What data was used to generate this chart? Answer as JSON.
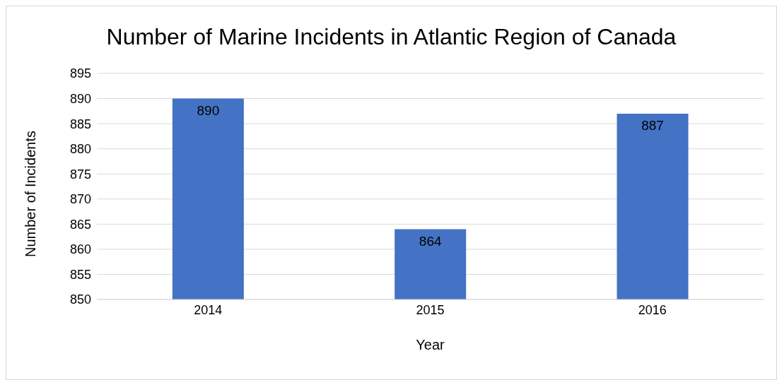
{
  "chart_data": {
    "type": "bar",
    "title": "Number of Marine Incidents in Atlantic Region of Canada",
    "xlabel": "Year",
    "ylabel": "Number of Incidents",
    "categories": [
      "2014",
      "2015",
      "2016"
    ],
    "values": [
      890,
      864,
      887
    ],
    "color": "#4472c4",
    "ylim": [
      850,
      895
    ],
    "yticks": [
      850,
      855,
      860,
      865,
      870,
      875,
      880,
      885,
      890,
      895
    ],
    "grid": "y",
    "data_labels": true
  }
}
